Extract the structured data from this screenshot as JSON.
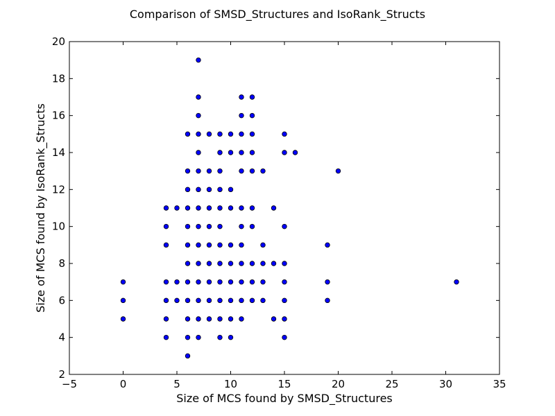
{
  "chart_data": {
    "type": "scatter",
    "title": "Comparison of SMSD_Structures and IsoRank_Structs",
    "xlabel": "Size of MCS found by SMSD_Structures",
    "ylabel": "Size of MCS found by IsoRank_Structs",
    "xlim": [
      -5,
      35
    ],
    "ylim": [
      2,
      20
    ],
    "x_ticks": [
      "−5",
      "0",
      "5",
      "10",
      "15",
      "20",
      "25",
      "30",
      "35"
    ],
    "y_ticks": [
      "2",
      "4",
      "6",
      "8",
      "10",
      "12",
      "14",
      "16",
      "18",
      "20"
    ],
    "grid": false,
    "marker_color": "#0000ff",
    "marker_edge_color": "#000000",
    "points": [
      [
        0,
        5
      ],
      [
        0,
        6
      ],
      [
        0,
        7
      ],
      [
        4,
        4
      ],
      [
        4,
        5
      ],
      [
        4,
        6
      ],
      [
        4,
        7
      ],
      [
        4,
        9
      ],
      [
        4,
        10
      ],
      [
        4,
        11
      ],
      [
        5,
        6
      ],
      [
        5,
        7
      ],
      [
        5,
        11
      ],
      [
        6,
        3
      ],
      [
        6,
        4
      ],
      [
        6,
        5
      ],
      [
        6,
        6
      ],
      [
        6,
        7
      ],
      [
        6,
        8
      ],
      [
        6,
        9
      ],
      [
        6,
        10
      ],
      [
        6,
        11
      ],
      [
        6,
        12
      ],
      [
        6,
        13
      ],
      [
        6,
        15
      ],
      [
        7,
        4
      ],
      [
        7,
        5
      ],
      [
        7,
        6
      ],
      [
        7,
        7
      ],
      [
        7,
        8
      ],
      [
        7,
        9
      ],
      [
        7,
        10
      ],
      [
        7,
        11
      ],
      [
        7,
        12
      ],
      [
        7,
        13
      ],
      [
        7,
        14
      ],
      [
        7,
        15
      ],
      [
        7,
        16
      ],
      [
        7,
        17
      ],
      [
        7,
        19
      ],
      [
        8,
        5
      ],
      [
        8,
        6
      ],
      [
        8,
        7
      ],
      [
        8,
        8
      ],
      [
        8,
        9
      ],
      [
        8,
        10
      ],
      [
        8,
        11
      ],
      [
        8,
        12
      ],
      [
        8,
        13
      ],
      [
        8,
        15
      ],
      [
        9,
        4
      ],
      [
        9,
        5
      ],
      [
        9,
        6
      ],
      [
        9,
        7
      ],
      [
        9,
        8
      ],
      [
        9,
        9
      ],
      [
        9,
        10
      ],
      [
        9,
        11
      ],
      [
        9,
        12
      ],
      [
        9,
        13
      ],
      [
        9,
        14
      ],
      [
        9,
        15
      ],
      [
        10,
        4
      ],
      [
        10,
        5
      ],
      [
        10,
        6
      ],
      [
        10,
        7
      ],
      [
        10,
        8
      ],
      [
        10,
        9
      ],
      [
        10,
        11
      ],
      [
        10,
        12
      ],
      [
        10,
        14
      ],
      [
        10,
        15
      ],
      [
        11,
        5
      ],
      [
        11,
        6
      ],
      [
        11,
        7
      ],
      [
        11,
        8
      ],
      [
        11,
        9
      ],
      [
        11,
        10
      ],
      [
        11,
        11
      ],
      [
        11,
        13
      ],
      [
        11,
        14
      ],
      [
        11,
        15
      ],
      [
        11,
        16
      ],
      [
        11,
        17
      ],
      [
        12,
        6
      ],
      [
        12,
        7
      ],
      [
        12,
        8
      ],
      [
        12,
        10
      ],
      [
        12,
        11
      ],
      [
        12,
        13
      ],
      [
        12,
        14
      ],
      [
        12,
        15
      ],
      [
        12,
        16
      ],
      [
        12,
        17
      ],
      [
        13,
        6
      ],
      [
        13,
        7
      ],
      [
        13,
        8
      ],
      [
        13,
        9
      ],
      [
        13,
        13
      ],
      [
        14,
        5
      ],
      [
        14,
        8
      ],
      [
        14,
        11
      ],
      [
        15,
        4
      ],
      [
        15,
        5
      ],
      [
        15,
        6
      ],
      [
        15,
        7
      ],
      [
        15,
        8
      ],
      [
        15,
        10
      ],
      [
        15,
        14
      ],
      [
        15,
        15
      ],
      [
        16,
        14
      ],
      [
        19,
        6
      ],
      [
        19,
        7
      ],
      [
        19,
        9
      ],
      [
        20,
        13
      ],
      [
        31,
        7
      ]
    ]
  }
}
